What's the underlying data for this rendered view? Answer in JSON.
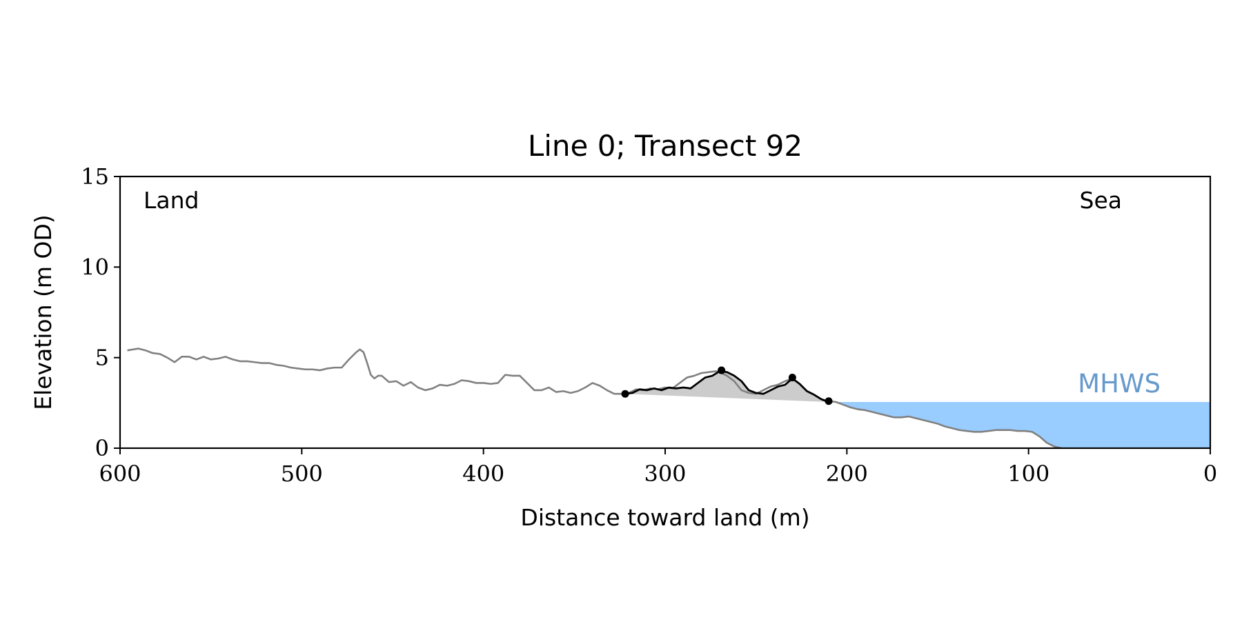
{
  "chart_data": {
    "type": "line",
    "title": "Line 0; Transect 92",
    "xlabel": "Distance toward land (m)",
    "ylabel": "Elevation (m OD)",
    "xlim": [
      600,
      0
    ],
    "ylim": [
      0,
      15
    ],
    "x_ticks": [
      600,
      500,
      400,
      300,
      200,
      100,
      0
    ],
    "y_ticks": [
      0,
      5,
      10,
      15
    ],
    "annotations": {
      "land_label": "Land",
      "sea_label": "Sea",
      "mhws_label": "MHWS"
    },
    "mhws_elevation": 2.55,
    "colors": {
      "profile": "#808080",
      "dune": "#000000",
      "dune_fill": "#cccccc",
      "sea_fill": "#99ccff",
      "mhws_text": "#6699cc"
    },
    "series": [
      {
        "id": "profile",
        "x": [
          596,
          590,
          586,
          582,
          578,
          574,
          570,
          566,
          562,
          558,
          554,
          550,
          546,
          542,
          538,
          534,
          530,
          526,
          522,
          518,
          514,
          510,
          506,
          502,
          498,
          494,
          490,
          486,
          482,
          478,
          474,
          470,
          468,
          466,
          464,
          462,
          460,
          458,
          456,
          452,
          448,
          444,
          440,
          436,
          432,
          428,
          424,
          420,
          416,
          412,
          408,
          404,
          400,
          396,
          392,
          388,
          384,
          380,
          376,
          372,
          368,
          364,
          360,
          356,
          352,
          348,
          344,
          340,
          336,
          332,
          328,
          324,
          320,
          316,
          312,
          308,
          304,
          300,
          296,
          292,
          288,
          284,
          280,
          276,
          272,
          270,
          266,
          262,
          258,
          254,
          250,
          246,
          242,
          238,
          234,
          230,
          226,
          222,
          218,
          214,
          210,
          206,
          202,
          198,
          194,
          190,
          186,
          182,
          178,
          174,
          170,
          166,
          162,
          158,
          154,
          150,
          146,
          142,
          138,
          134,
          130,
          126,
          122,
          118,
          114,
          110,
          106,
          102,
          98,
          94,
          90,
          86,
          82
        ],
        "y": [
          5.4,
          5.5,
          5.4,
          5.25,
          5.2,
          5.0,
          4.75,
          5.05,
          5.05,
          4.9,
          5.05,
          4.9,
          4.95,
          5.05,
          4.9,
          4.8,
          4.8,
          4.75,
          4.7,
          4.7,
          4.6,
          4.55,
          4.45,
          4.4,
          4.35,
          4.35,
          4.3,
          4.4,
          4.45,
          4.45,
          4.9,
          5.3,
          5.45,
          5.3,
          4.7,
          4.05,
          3.85,
          4.0,
          4.0,
          3.65,
          3.7,
          3.45,
          3.65,
          3.35,
          3.2,
          3.3,
          3.5,
          3.45,
          3.55,
          3.75,
          3.7,
          3.6,
          3.6,
          3.55,
          3.6,
          4.05,
          4.0,
          4.0,
          3.6,
          3.2,
          3.2,
          3.35,
          3.1,
          3.15,
          3.05,
          3.15,
          3.35,
          3.6,
          3.45,
          3.2,
          3.0,
          3.0,
          3.05,
          3.25,
          3.2,
          3.3,
          3.25,
          3.35,
          3.3,
          3.6,
          3.9,
          4.0,
          4.15,
          4.2,
          4.25,
          4.2,
          4.0,
          3.7,
          3.2,
          3.05,
          3.0,
          3.2,
          3.4,
          3.5,
          3.7,
          3.85,
          3.55,
          3.15,
          2.95,
          2.7,
          2.6,
          2.55,
          2.4,
          2.25,
          2.15,
          2.1,
          2.0,
          1.9,
          1.8,
          1.7,
          1.7,
          1.75,
          1.65,
          1.55,
          1.45,
          1.35,
          1.2,
          1.1,
          1.0,
          0.95,
          0.9,
          0.9,
          0.95,
          1.0,
          1.0,
          1.0,
          0.95,
          0.95,
          0.9,
          0.65,
          0.3,
          0.1,
          0.0
        ]
      },
      {
        "id": "dune",
        "x": [
          322,
          318,
          314,
          310,
          306,
          302,
          298,
          294,
          290,
          286,
          282,
          278,
          274,
          270,
          266,
          262,
          258,
          254,
          250,
          246,
          242,
          238,
          234,
          230,
          226,
          222,
          218,
          214,
          210
        ],
        "y": [
          3.0,
          3.05,
          3.25,
          3.2,
          3.3,
          3.2,
          3.35,
          3.3,
          3.35,
          3.3,
          3.6,
          3.9,
          4.0,
          4.25,
          4.2,
          4.0,
          3.7,
          3.2,
          3.05,
          3.0,
          3.2,
          3.4,
          3.5,
          3.85,
          3.55,
          3.15,
          2.95,
          2.7,
          2.55
        ]
      }
    ],
    "dune_toe": {
      "x": 322,
      "y": 3.0
    },
    "dune_toe_line_end": {
      "x": 210,
      "y": 2.55
    },
    "markers": [
      {
        "x": 322,
        "y": 3.0
      },
      {
        "x": 269,
        "y": 4.3
      },
      {
        "x": 230,
        "y": 3.9
      },
      {
        "x": 210,
        "y": 2.6
      }
    ]
  }
}
